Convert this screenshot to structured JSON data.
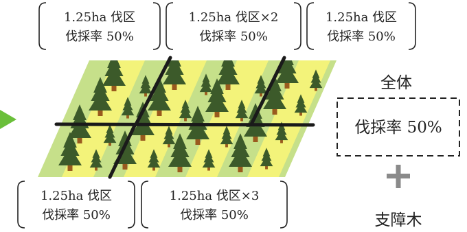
{
  "labels": [
    {
      "line1": "1.25ha 伐区",
      "line2": "伐採率 50%"
    },
    {
      "line1": "1.25ha 伐区×2",
      "line2": "伐採率 50%"
    },
    {
      "line1": "1.25ha 伐区",
      "line2": "伐採率 50%"
    },
    {
      "line1": "1.25ha 伐区",
      "line2": "伐採率 50%"
    },
    {
      "line1": "1.25ha 伐区×3",
      "line2": "伐採率 50%"
    }
  ],
  "summary": {
    "title": "全体",
    "box_text": "伐採率 50%",
    "plus_symbol": "+",
    "footer": "支障木"
  },
  "colors": {
    "stripe_green": "#c6e08a",
    "stripe_yellow": "#f3f37a",
    "tree_dark": "#3c5a2a",
    "tree_light": "#5b7d3e",
    "trunk": "#9a5a1e",
    "arrow": "#6abf3a",
    "plus": "#8a8a8a"
  },
  "icons": {
    "arrow": "arrow-right-icon",
    "tree": "conifer-tree-icon",
    "plus": "plus-icon"
  }
}
